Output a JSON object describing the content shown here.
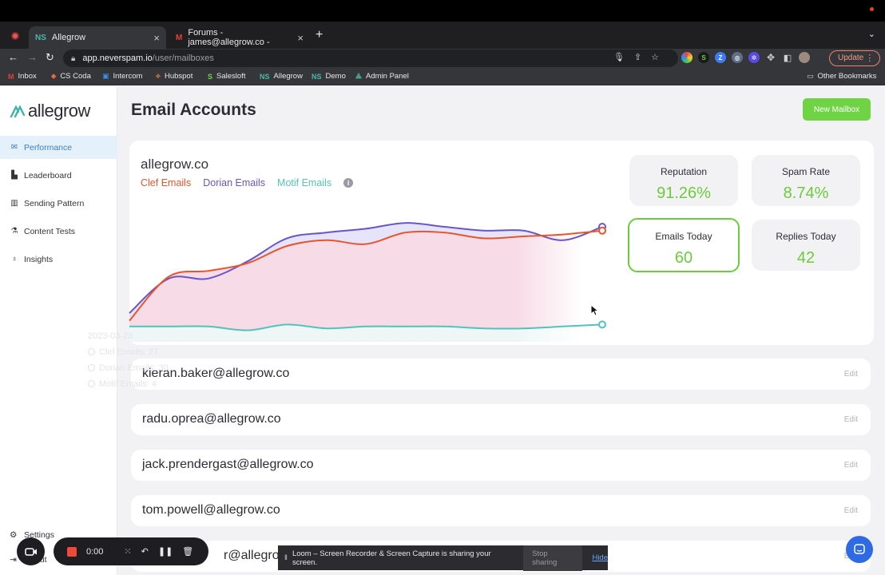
{
  "browser": {
    "tabs": [
      {
        "favicon": "NS",
        "title": "Allegrow",
        "close": "×"
      },
      {
        "favicon": "M",
        "title": "Forums - james@allegrow.co -",
        "close": "×"
      }
    ],
    "new_tab": "+",
    "url_host": "app.neverspam.io",
    "url_path": "/user/mailboxes",
    "update_label": "Update",
    "bookmarks": [
      {
        "icon": "M",
        "label": "Inbox"
      },
      {
        "icon": "⬥",
        "label": "CS Coda"
      },
      {
        "icon": "▣",
        "label": "Intercom"
      },
      {
        "icon": "⟡",
        "label": "Hubspot"
      },
      {
        "icon": "S",
        "label": "Salesloft"
      },
      {
        "icon": "NS",
        "label": "Allegrow"
      },
      {
        "icon": "NS",
        "label": "Demo"
      },
      {
        "icon": "⟁",
        "label": "Admin Panel"
      }
    ],
    "other_bookmarks": "Other Bookmarks"
  },
  "sidebar": {
    "brand": "allegrow",
    "items": [
      {
        "icon": "mail-icon",
        "label": "Performance",
        "active": true
      },
      {
        "icon": "podium-icon",
        "label": "Leaderboard"
      },
      {
        "icon": "bar-chart-icon",
        "label": "Sending Pattern"
      },
      {
        "icon": "flask-icon",
        "label": "Content Tests"
      },
      {
        "icon": "bulb-icon",
        "label": "Insights"
      }
    ],
    "settings_label": "Settings",
    "logout_label": "out"
  },
  "header": {
    "title": "Email Accounts",
    "new_mailbox": "New Mailbox"
  },
  "performance": {
    "domain": "allegrow.co",
    "legend": [
      {
        "name": "Clef Emails",
        "color": "#e8552d"
      },
      {
        "name": "Dorian Emails",
        "color": "#6a55c8"
      },
      {
        "name": "Motif Emails",
        "color": "#54c2b8"
      }
    ],
    "stats": [
      {
        "label": "Reputation",
        "value": "91.26%"
      },
      {
        "label": "Spam Rate",
        "value": "8.74%"
      },
      {
        "label": "Emails Today",
        "value": "60",
        "highlight": true
      },
      {
        "label": "Replies Today",
        "value": "42"
      }
    ],
    "ghost_tooltip": {
      "date": "2023-03-28",
      "lines": [
        "Clef Emails: 27",
        "Dorian Emails: 30",
        "Motif Emails: 4"
      ]
    }
  },
  "chart_data": {
    "type": "area",
    "title": "",
    "xlabel": "",
    "ylabel": "",
    "grid": false,
    "legend_position": "top-left",
    "x": [
      0,
      1,
      2,
      3,
      4,
      5,
      6,
      7,
      8,
      9,
      10,
      11,
      12
    ],
    "ylim": [
      0,
      70
    ],
    "series": [
      {
        "name": "Dorian Emails",
        "values": [
          15,
          33,
          33,
          42,
          54,
          57,
          59,
          62,
          60,
          58,
          58,
          53,
          60
        ]
      },
      {
        "name": "Clef Emails",
        "values": [
          11,
          34,
          37,
          41,
          50,
          53,
          51,
          57,
          57,
          54,
          55,
          56,
          58
        ]
      },
      {
        "name": "Motif Emails",
        "values": [
          8,
          8,
          8,
          6,
          9,
          7,
          8,
          8,
          8,
          7,
          7,
          8,
          9
        ]
      }
    ]
  },
  "mailboxes": [
    {
      "email": "kieran.baker@allegrow.co",
      "edit": "Edit"
    },
    {
      "email": "radu.oprea@allegrow.co",
      "edit": "Edit"
    },
    {
      "email": "jack.prendergast@allegrow.co",
      "edit": "Edit"
    },
    {
      "email": "tom.powell@allegrow.co",
      "edit": "Edit"
    },
    {
      "email": "r@allegrow",
      "edit": "Edit"
    }
  ],
  "loom": {
    "timer": "0:00",
    "share_message": "Loom – Screen Recorder & Screen Capture is sharing your screen.",
    "stop_sharing": "Stop sharing",
    "hide": "Hide"
  }
}
